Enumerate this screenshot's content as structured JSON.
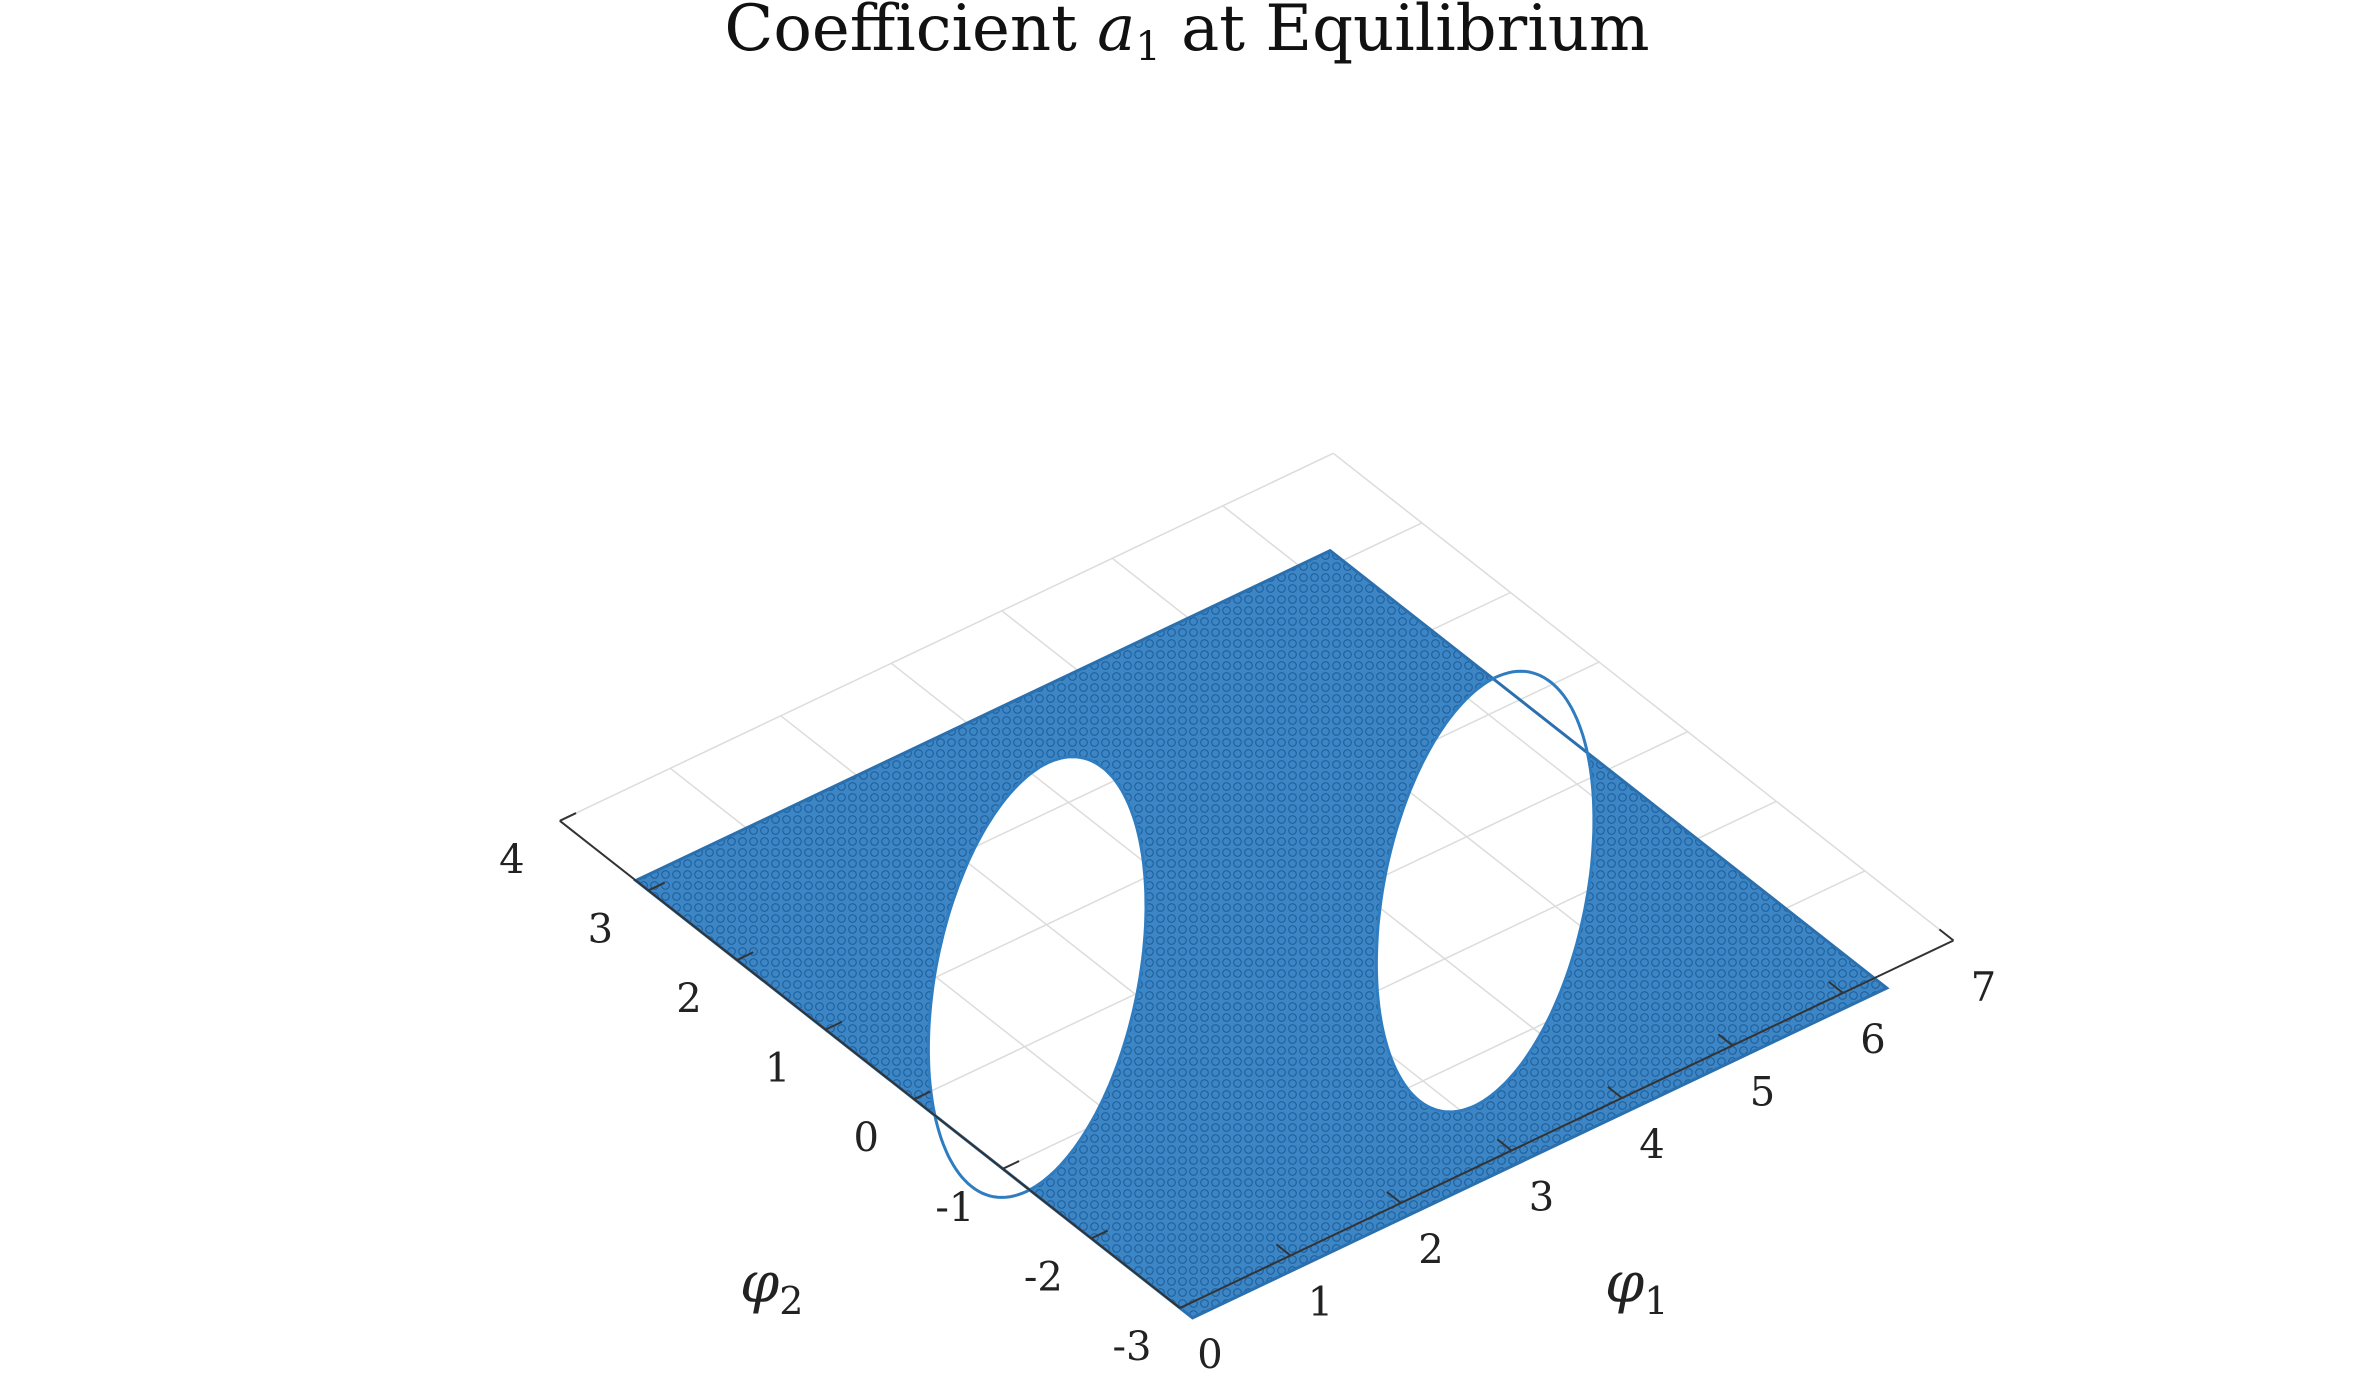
{
  "chart_data": {
    "type": "scatter",
    "title": "Coefficient a1 at Equilibrium",
    "title_parts": {
      "prefix": "Coefficient ",
      "variable": "a",
      "subscript": "1",
      "suffix": " at Equilibrium"
    },
    "xlabel": "φ1",
    "xlabel_parts": {
      "symbol": "φ",
      "subscript": "1"
    },
    "ylabel": "φ2",
    "ylabel_parts": {
      "symbol": "φ",
      "subscript": "2"
    },
    "x_range": [
      0,
      7
    ],
    "y_range": [
      -3,
      4
    ],
    "x_ticks": [
      0,
      1,
      2,
      3,
      4,
      5,
      6,
      7
    ],
    "y_ticks": [
      -3,
      -2,
      -1,
      0,
      1,
      2,
      3,
      4
    ],
    "x_tick_labels": [
      "0",
      "1",
      "2",
      "3",
      "4",
      "5",
      "6",
      "7"
    ],
    "y_tick_labels": [
      "-3",
      "-2",
      "-1",
      "0",
      "1",
      "2",
      "3",
      "4"
    ],
    "grid": true,
    "marker": "circle",
    "series_color": "#2f7dc0",
    "domain": {
      "x": [
        0,
        6.283
      ],
      "y": [
        -3.1416,
        3.1416
      ]
    },
    "empty_regions": [
      {
        "center_x": 1.57,
        "center_y": 0.57,
        "semi_axis_along_diagonal": 2.55,
        "semi_axis_across": 0.72
      },
      {
        "center_x": 4.71,
        "center_y": -0.57,
        "semi_axis_along_diagonal": 2.55,
        "semi_axis_across": 0.72
      }
    ]
  }
}
